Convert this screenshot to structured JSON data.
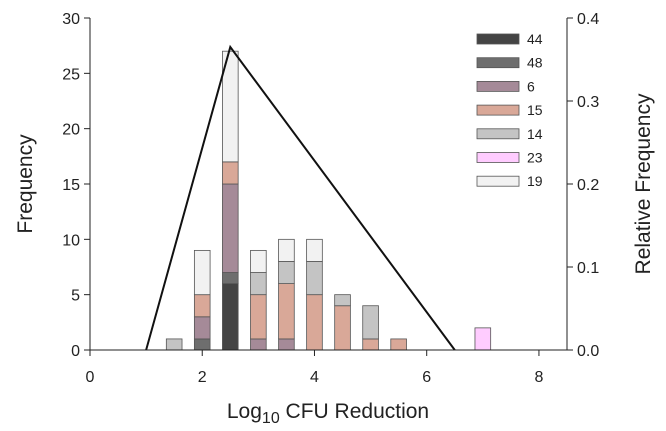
{
  "chart_data": {
    "type": "bar",
    "stacked": true,
    "title": "",
    "xlabel": "Log10 CFU Reduction",
    "xlabel_main": "Log",
    "xlabel_sub": "10",
    "xlabel_rest": " CFU Reduction",
    "ylabel": "Frequency",
    "y2label": "Relative Frequency",
    "xlim": [
      0,
      8.5
    ],
    "ylim": [
      0,
      30
    ],
    "y2lim": [
      0,
      0.4
    ],
    "x_ticks": [
      0,
      2,
      4,
      6,
      8
    ],
    "y_ticks": [
      0,
      5,
      10,
      15,
      20,
      25,
      30
    ],
    "y2_ticks": [
      "0.0",
      "0.1",
      "0.2",
      "0.3",
      "0.4"
    ],
    "legend_position": "top-right",
    "bar_width": 0.28,
    "bins": [
      1.5,
      2.0,
      2.5,
      3.0,
      3.5,
      4.0,
      4.5,
      5.0,
      5.5,
      7.0
    ],
    "series": [
      {
        "name": "44",
        "color": "#444444",
        "values": [
          0,
          0,
          6,
          0,
          0,
          0,
          0,
          0,
          0,
          0
        ]
      },
      {
        "name": "48",
        "color": "#6e6e6e",
        "values": [
          0,
          1,
          1,
          0,
          0,
          0,
          0,
          0,
          0,
          0
        ]
      },
      {
        "name": "6",
        "color": "#a58a98",
        "values": [
          0,
          2,
          8,
          1,
          1,
          0,
          0,
          0,
          0,
          0
        ]
      },
      {
        "name": "15",
        "color": "#d9a898",
        "values": [
          0,
          2,
          2,
          4,
          5,
          5,
          4,
          1,
          1,
          0
        ]
      },
      {
        "name": "14",
        "color": "#c4c4c4",
        "values": [
          1,
          0,
          0,
          2,
          2,
          3,
          1,
          3,
          0,
          0
        ]
      },
      {
        "name": "23",
        "color": "#ffccff",
        "values": [
          0,
          0,
          0,
          0,
          0,
          0,
          0,
          0,
          0,
          2
        ]
      },
      {
        "name": "19",
        "color": "#f2f2f2",
        "values": [
          0,
          4,
          10,
          2,
          2,
          2,
          0,
          0,
          0,
          0
        ]
      }
    ],
    "triangle_line": {
      "x": [
        1.0,
        2.5,
        6.5
      ],
      "y2": [
        0.0,
        0.365,
        0.0
      ]
    }
  }
}
